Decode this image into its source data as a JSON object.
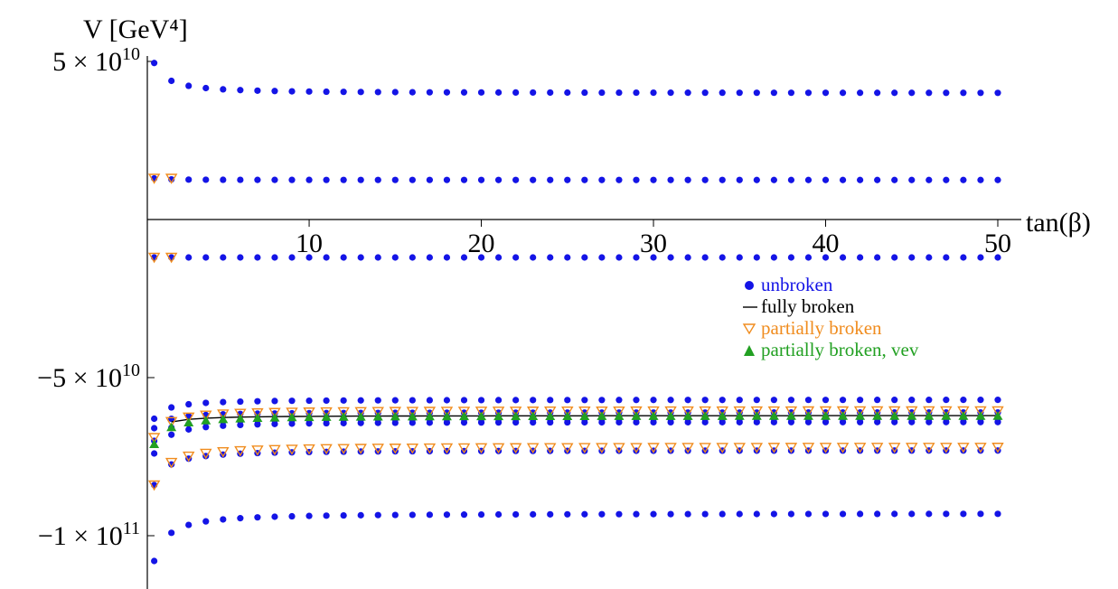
{
  "chart_data": {
    "type": "scatter",
    "title": "",
    "xlabel": "tan(β)",
    "ylabel": "V [GeV⁴]",
    "xlim": [
      0.2,
      50.6
    ],
    "ylim": [
      -109000000000.0,
      57000000000.0
    ],
    "x_ticks": [
      {
        "value": 10,
        "label": "10"
      },
      {
        "value": 20,
        "label": "20"
      },
      {
        "value": 30,
        "label": "30"
      },
      {
        "value": 40,
        "label": "40"
      },
      {
        "value": 50,
        "label": "50"
      }
    ],
    "y_ticks": [
      {
        "value": 50000000000.0,
        "mantissa": "5",
        "exp": "10"
      },
      {
        "value": -50000000000.0,
        "mantissa": "−5",
        "exp": "10"
      },
      {
        "value": -100000000000.0,
        "mantissa": "−1",
        "exp": "11"
      }
    ],
    "legend": {
      "position": "center-right",
      "entries": [
        {
          "label": "unbroken",
          "marker": "circle",
          "color": "#1414e6"
        },
        {
          "label": "fully broken",
          "marker": "line",
          "color": "#000000"
        },
        {
          "label": "partially broken",
          "marker": "triangle-down-open",
          "color": "#f08c1e"
        },
        {
          "label": "partially broken, vev",
          "marker": "triangle-up",
          "color": "#22a022"
        }
      ]
    },
    "series": [
      {
        "name": "unbroken",
        "branches": [
          {
            "y1": 49500000000.0,
            "ylim": 40000000000.0
          },
          {
            "y1": 13000000000.0,
            "ylim": 12500000000.0
          },
          {
            "y1": -12000000000.0,
            "ylim": -12000000000.0
          },
          {
            "y1": -63000000000.0,
            "ylim": -57000000000.0
          },
          {
            "y1": -66000000000.0,
            "ylim": -61000000000.0
          },
          {
            "y1": -70000000000.0,
            "ylim": -63000000000.0
          },
          {
            "y1": -74000000000.0,
            "ylim": -64000000000.0
          },
          {
            "y1": -84000000000.0,
            "ylim": -73000000000.0
          },
          {
            "y1": -108000000000.0,
            "ylim": -93000000000.0
          }
        ]
      },
      {
        "name": "fully broken",
        "branches": [
          {
            "y1": -67000000000.0,
            "ylim": -62000000000.0
          }
        ]
      },
      {
        "name": "partially broken",
        "branches": [
          {
            "y1": 13000000000.0,
            "ylim": 13000000000.0
          },
          {
            "y1": -12000000000.0,
            "ylim": -12000000000.0
          },
          {
            "y1": -69000000000.0,
            "ylim": -60500000000.0
          },
          {
            "y1": -84000000000.0,
            "ylim": -72000000000.0
          }
        ]
      },
      {
        "name": "partially broken, vev",
        "branches": [
          {
            "y1": -71000000000.0,
            "ylim": -62000000000.0
          }
        ]
      }
    ]
  }
}
